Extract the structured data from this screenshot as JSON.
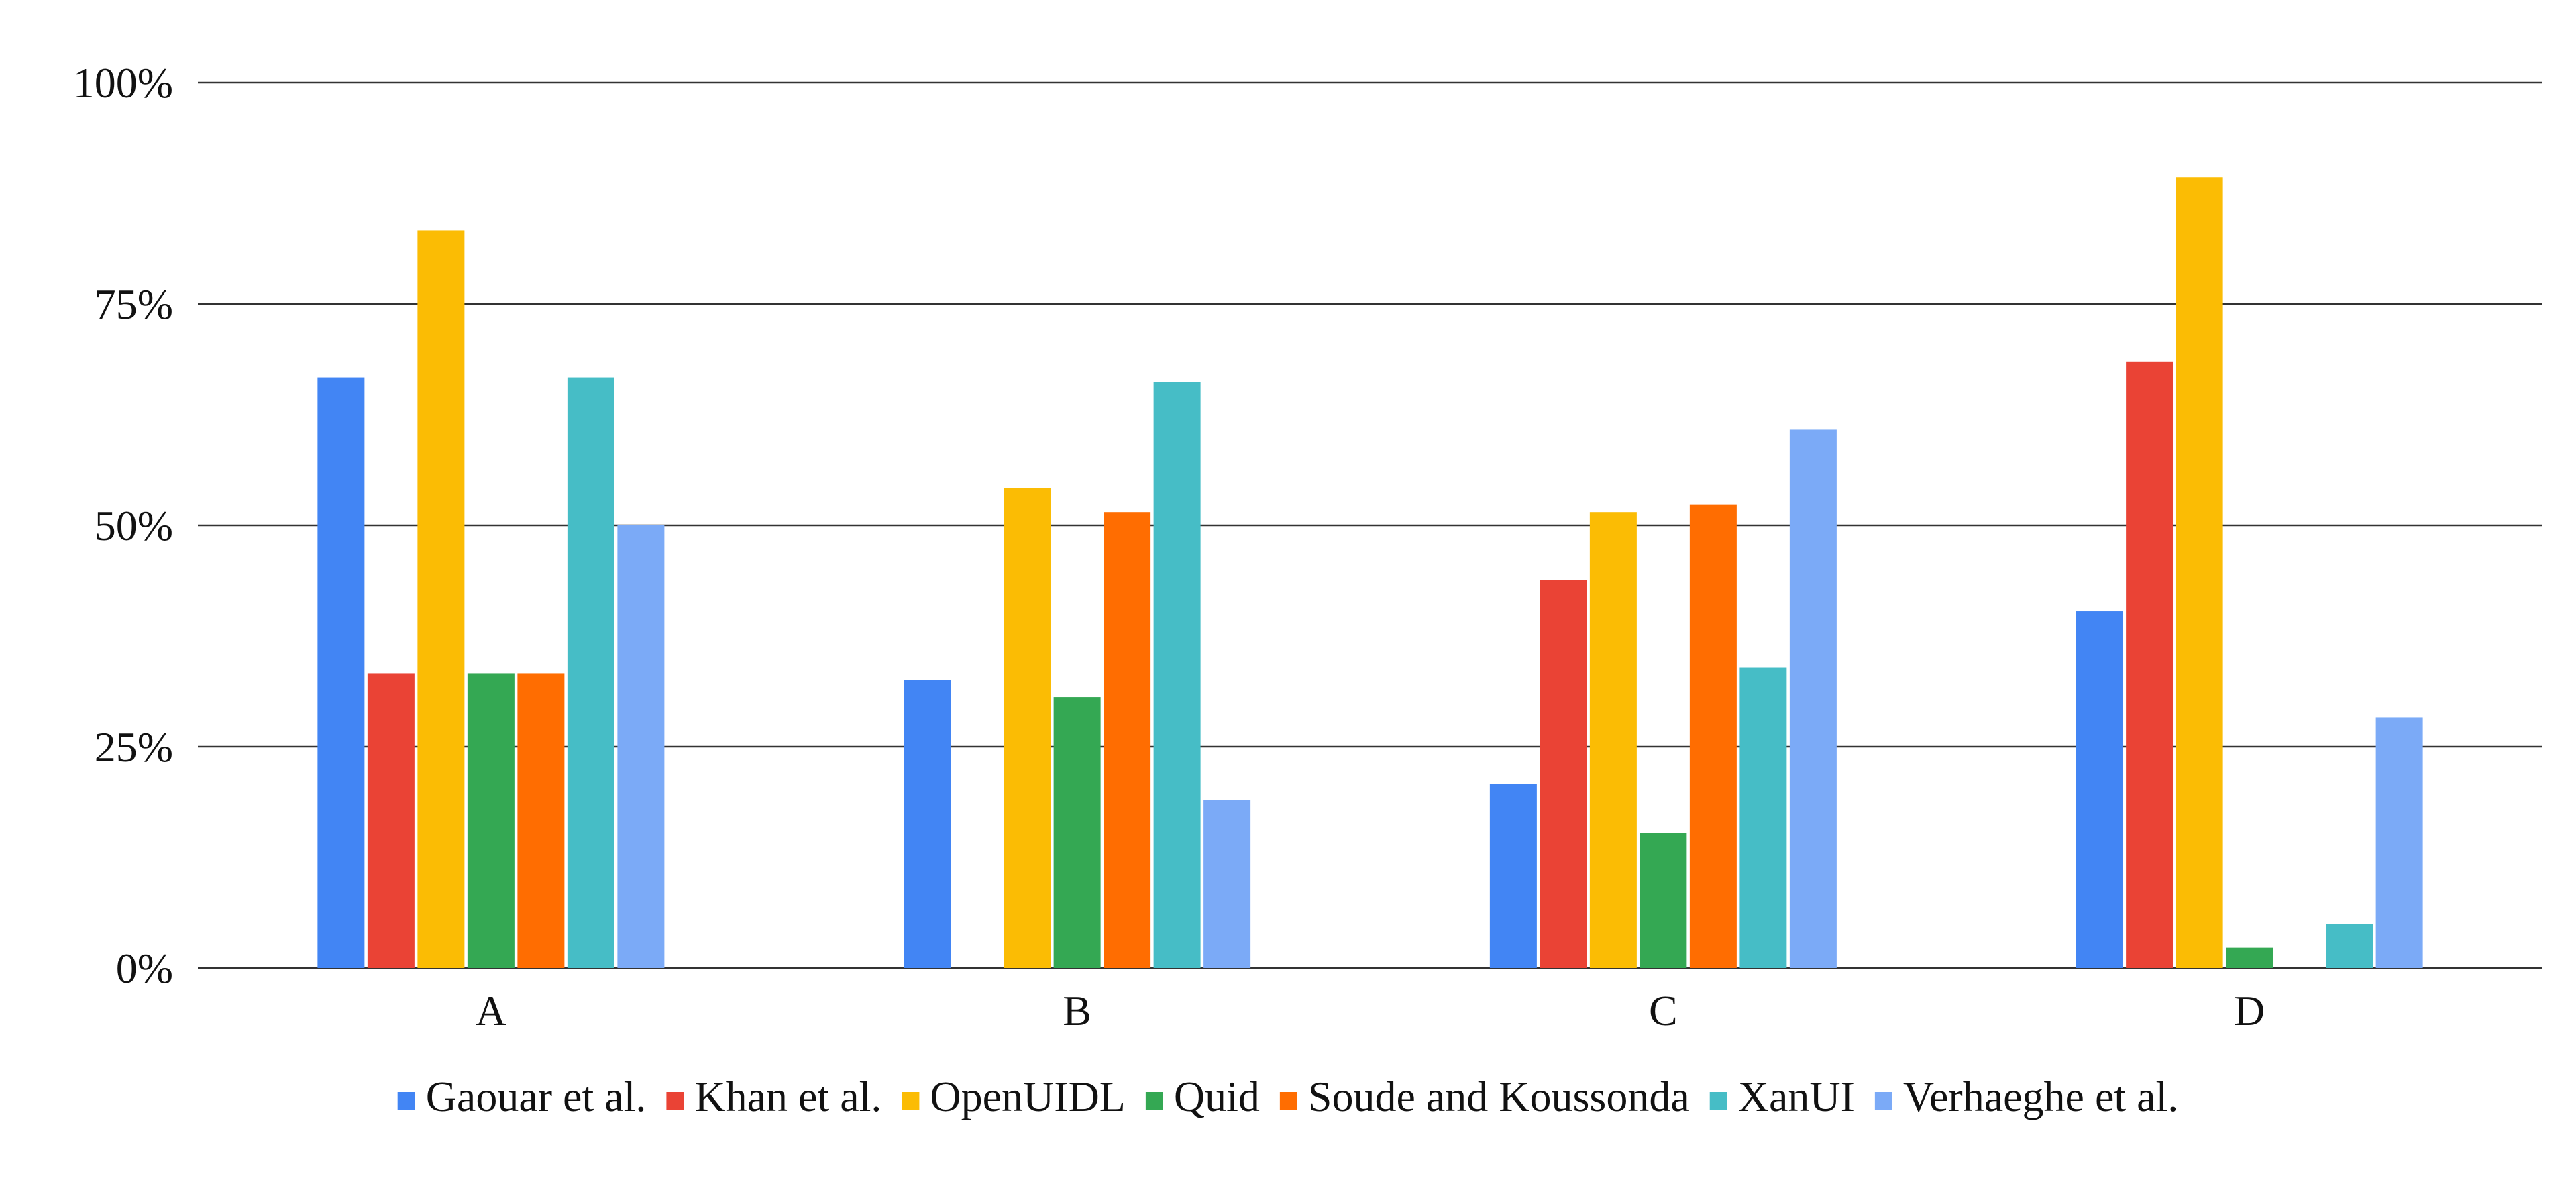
{
  "chart_data": {
    "type": "bar",
    "title": "",
    "xlabel": "",
    "ylabel": "",
    "ylim": [
      0,
      100
    ],
    "yticks": [
      "0%",
      "25%",
      "50%",
      "75%",
      "100%"
    ],
    "ytick_values": [
      0,
      25,
      50,
      75,
      100
    ],
    "grid": true,
    "legend_position": "bottom",
    "categories": [
      "A",
      "B",
      "C",
      "D"
    ],
    "series": [
      {
        "name": "Gaouar et al.",
        "color": "#4285F4",
        "values": [
          66.7,
          32.5,
          20.8,
          40.3
        ]
      },
      {
        "name": "Khan et al.",
        "color": "#EA4335",
        "values": [
          33.3,
          0,
          43.8,
          68.5
        ]
      },
      {
        "name": "OpenUIDL",
        "color": "#FBBC04",
        "values": [
          83.3,
          54.2,
          51.5,
          89.3
        ]
      },
      {
        "name": "Quid",
        "color": "#34A853",
        "values": [
          33.3,
          30.6,
          15.3,
          2.3
        ]
      },
      {
        "name": "Soude and Koussonda",
        "color": "#FF6D01",
        "values": [
          33.3,
          51.5,
          52.3,
          0
        ]
      },
      {
        "name": "XanUI",
        "color": "#46BDC6",
        "values": [
          66.7,
          66.2,
          33.9,
          5.0
        ]
      },
      {
        "name": "Verhaeghe et al.",
        "color": "#7BAAF7",
        "values": [
          50.0,
          19.0,
          60.8,
          28.3
        ]
      }
    ]
  }
}
